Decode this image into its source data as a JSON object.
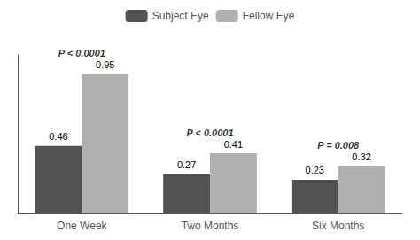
{
  "chart_data": {
    "type": "bar",
    "categories": [
      "One Week",
      "Two Months",
      "Six Months"
    ],
    "series": [
      {
        "name": "Subject Eye",
        "color": "#525252",
        "values": [
          0.46,
          0.27,
          0.23
        ]
      },
      {
        "name": "Fellow Eye",
        "color": "#b0b0b0",
        "values": [
          0.95,
          0.41,
          0.32
        ]
      }
    ],
    "ylim": [
      0,
      1.08
    ],
    "data_labels": true,
    "tick_labels": "x",
    "grid": false,
    "legend": "top",
    "annotations": [
      {
        "text": "P < 0.0001",
        "category": "One Week"
      },
      {
        "text": "P < 0.0001",
        "category": "Two Months"
      },
      {
        "text": "P = 0.008",
        "category": "Six Months"
      }
    ]
  }
}
